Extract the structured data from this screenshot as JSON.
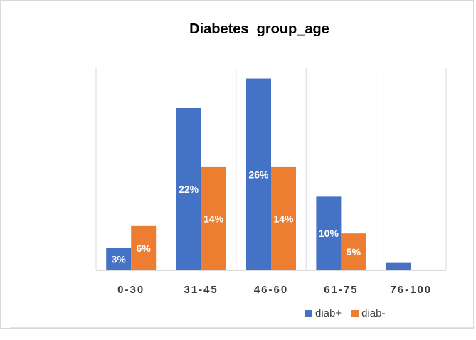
{
  "chart_data": {
    "type": "bar",
    "title": "Diabetes  group_age",
    "categories": [
      "0-30",
      "31-45",
      "46-60",
      "61-75",
      "76-100"
    ],
    "series": [
      {
        "name": "diab+",
        "color": "#4472c4",
        "values": [
          3,
          22,
          26,
          10,
          1
        ],
        "labels": [
          "3%",
          "22%",
          "26%",
          "10%",
          ""
        ]
      },
      {
        "name": "diab-",
        "color": "#ed7d31",
        "values": [
          6,
          14,
          14,
          5,
          0
        ],
        "labels": [
          "6%",
          "14%",
          "14%",
          "5%",
          ""
        ]
      }
    ],
    "xlabel": "",
    "ylabel": "",
    "ylim": [
      0,
      27.5
    ],
    "grid": "vertical",
    "legend_position": "bottom-right"
  }
}
